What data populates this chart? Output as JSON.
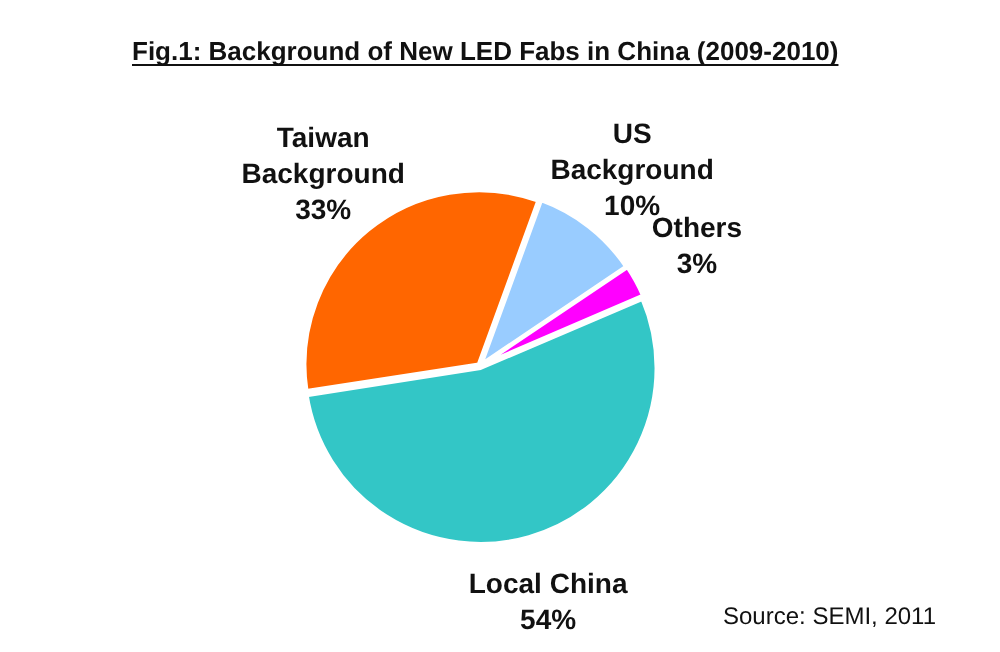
{
  "chart_data": {
    "type": "pie",
    "title": "Fig.1: Background of New LED Fabs in China (2009-2010)",
    "categories": [
      "US Background",
      "Others",
      "Local China",
      "Taiwan Background"
    ],
    "values": [
      10,
      3,
      54,
      33
    ],
    "colors": [
      "#99ccff",
      "#ff00ff",
      "#33c6c6",
      "#ff6600"
    ],
    "value_labels": [
      "10%",
      "3%",
      "54%",
      "33%"
    ],
    "annotations": [
      "Source: SEMI, 2011"
    ],
    "legend": false
  }
}
